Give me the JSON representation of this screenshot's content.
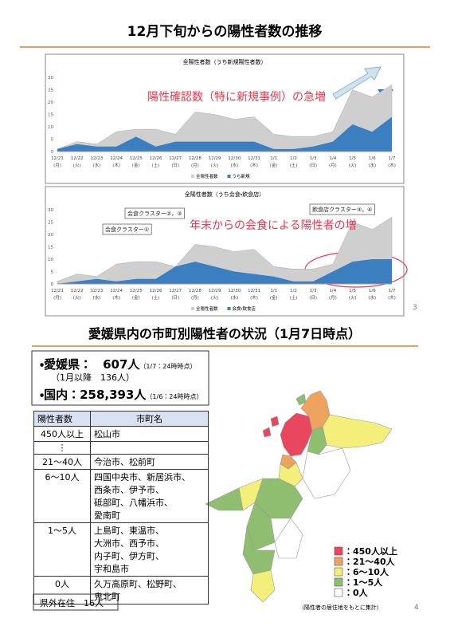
{
  "page_title_1": "12月下旬からの陽性者数の推移",
  "chart_data": [
    {
      "type": "area",
      "title": "全陽性者数（うち新規陽性者数）",
      "categories": [
        "12/21",
        "12/22",
        "12/23",
        "12/24",
        "12/25",
        "12/26",
        "12/27",
        "12/28",
        "12/29",
        "12/30",
        "12/31",
        "1/1",
        "1/2",
        "1/3",
        "1/4",
        "1/5",
        "1/6",
        "1/7"
      ],
      "category_sublabels": [
        "(月)",
        "(火)",
        "(水)",
        "(木)",
        "(金)",
        "(土)",
        "(日)",
        "(月)",
        "(火)",
        "(水)",
        "(木)",
        "(金)",
        "(土)",
        "(日)",
        "(月)",
        "(火)",
        "(水)",
        "(木)"
      ],
      "series": [
        {
          "name": "全陽性者数",
          "color": "#cfcfcf",
          "values": [
            1,
            4,
            3,
            8,
            9,
            9,
            7,
            16,
            15,
            13,
            14,
            7,
            6,
            6,
            8,
            25,
            22,
            27
          ]
        },
        {
          "name": "うち新規",
          "color": "#3b7fc0",
          "values": [
            1,
            3,
            2,
            2,
            6,
            2,
            4,
            4,
            4,
            4,
            4,
            1,
            1,
            2,
            4,
            11,
            8,
            14
          ]
        }
      ],
      "ylim": [
        0,
        30
      ],
      "yticks": [
        0,
        5,
        10,
        15,
        20,
        25,
        30
      ],
      "annotations": [
        {
          "text": "陽性確認数（特に新規事例）の急増",
          "color": "#e8384f"
        }
      ]
    },
    {
      "type": "area",
      "title": "全陽性者数（うち会食・飲食店）",
      "categories": [
        "12/21",
        "12/22",
        "12/23",
        "12/24",
        "12/25",
        "12/26",
        "12/27",
        "12/28",
        "12/29",
        "12/30",
        "12/31",
        "1/1",
        "1/2",
        "1/3",
        "1/4",
        "1/5",
        "1/6",
        "1/7"
      ],
      "category_sublabels": [
        "(月)",
        "(火)",
        "(水)",
        "(木)",
        "(金)",
        "(土)",
        "(日)",
        "(月)",
        "(火)",
        "(水)",
        "(木)",
        "(金)",
        "(土)",
        "(日)",
        "(月)",
        "(火)",
        "(水)",
        "(木)"
      ],
      "series": [
        {
          "name": "全陽性者数",
          "color": "#cfcfcf",
          "values": [
            1,
            4,
            3,
            8,
            9,
            9,
            7,
            16,
            15,
            13,
            14,
            7,
            6,
            6,
            8,
            25,
            22,
            27
          ]
        },
        {
          "name": "会食・飲食店",
          "color": "#3b7fc0",
          "values": [
            0,
            1,
            2,
            1,
            2,
            2,
            7,
            9,
            7,
            5,
            4,
            3,
            1,
            1,
            5,
            9,
            10,
            10
          ]
        }
      ],
      "ylim": [
        0,
        30
      ],
      "yticks": [
        0,
        5,
        10,
        15,
        20,
        25,
        30
      ],
      "annotations": [
        {
          "text": "会食クラスター②，③",
          "color": "#222222"
        },
        {
          "text": "会食クラスター①",
          "color": "#222222"
        },
        {
          "text": "飲食店クラスター③，④",
          "color": "#222222"
        },
        {
          "text": "年末からの会食による陽性者の増",
          "color": "#e8384f"
        }
      ]
    }
  ],
  "page_number_1": "3",
  "section_title_2": "愛媛県内の市町別陽性者の状況（1月7日時点）",
  "summary": {
    "ehime_label": "・愛媛県：",
    "ehime_count": "607人",
    "ehime_note": "（1/7：24時時点）",
    "since_jan": "（1月以降　136人）",
    "national_label": "・国内：",
    "national_count": "258,393人",
    "national_note": "（1/6：24時時点）"
  },
  "table": {
    "header": [
      "陽性者数",
      "市町名"
    ],
    "rows": [
      {
        "count": "450人以上",
        "names": [
          "松山市"
        ]
      },
      {
        "count": "⋮",
        "names": []
      },
      {
        "count": "21〜40人",
        "names": [
          "今治市、松前町"
        ]
      },
      {
        "count": "6〜10人",
        "names": [
          "四国中央市、新居浜市、",
          "西条市、伊予市、",
          "砥部町、八幡浜市、",
          "愛南町"
        ]
      },
      {
        "count": "1〜5人",
        "names": [
          "上島町、東温市、",
          "大洲市、西予市、",
          "内子町、伊方町、",
          "宇和島市"
        ]
      },
      {
        "count": "0人",
        "names": [
          "久万高原町、松野町、",
          "鬼北町"
        ]
      }
    ]
  },
  "outside_prefecture": "県外在住　16人",
  "map_legend": [
    {
      "label": "：450人以上",
      "color": "#e8475f"
    },
    {
      "label": "：21〜40人",
      "color": "#eda35e"
    },
    {
      "label": "：6〜10人",
      "color": "#f3ef7a"
    },
    {
      "label": "：1〜5人",
      "color": "#8fbe70"
    },
    {
      "label": "：0人",
      "color": "#ffffff"
    }
  ],
  "map_note": "（陽性者の居住地をもとに集計）",
  "page_number_2": "4"
}
